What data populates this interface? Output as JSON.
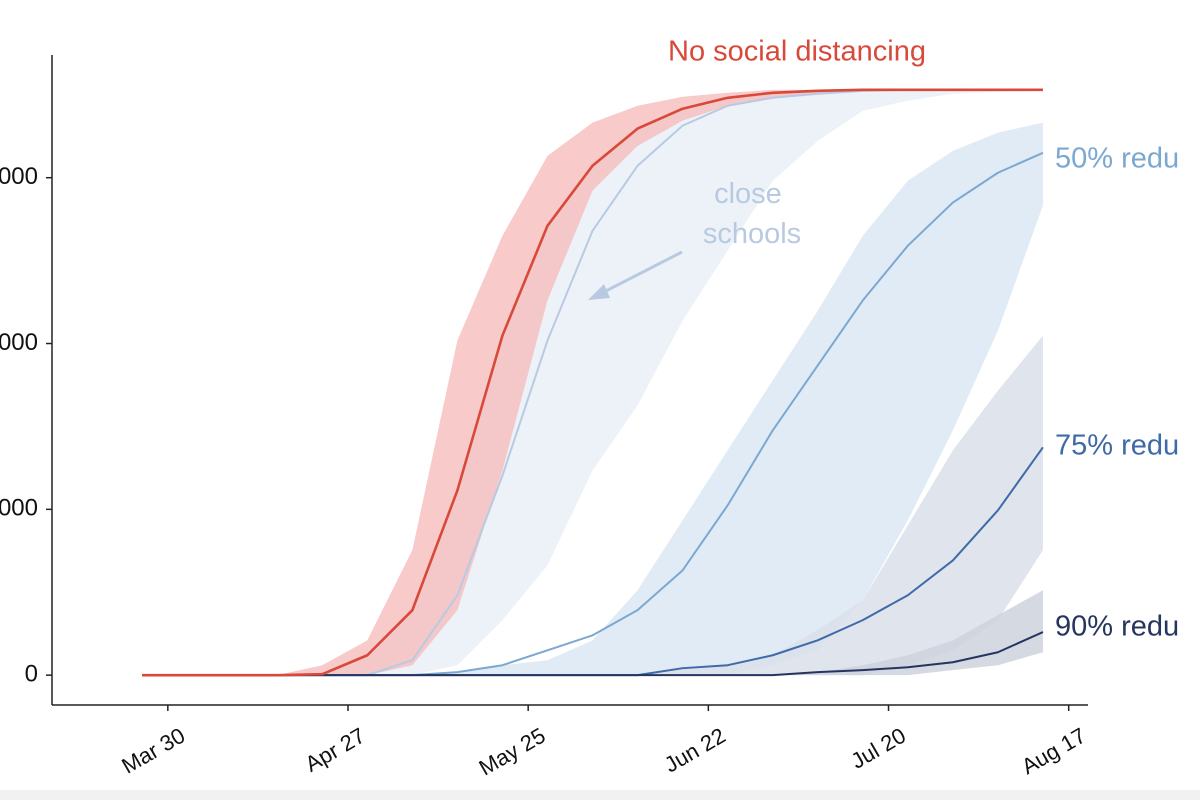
{
  "chart_data": {
    "type": "line",
    "x": [
      "Mar 26",
      "Apr 2",
      "Apr 9",
      "Apr 16",
      "Apr 23",
      "Apr 30",
      "May 7",
      "May 14",
      "May 21",
      "May 28",
      "Jun 4",
      "Jun 11",
      "Jun 18",
      "Jun 25",
      "Jul 2",
      "Jul 9",
      "Jul 16",
      "Jul 23",
      "Jul 30",
      "Aug 6",
      "Aug 13"
    ],
    "xlim": [
      "Mar 12",
      "Aug 20"
    ],
    "xticks": [
      "Mar 30",
      "Apr 27",
      "May 25",
      "Jun 22",
      "Jul 20",
      "Aug 17"
    ],
    "ylim": [
      -900,
      18700
    ],
    "yticks": [
      0,
      {
        "value": 5000,
        "label": "000"
      },
      {
        "value": 10000,
        "label": "000"
      },
      {
        "value": 15000,
        "label": "000"
      }
    ],
    "series": [
      {
        "name": "close schools",
        "color": "#b8cae2",
        "band_color": "#eaf0f8",
        "values": [
          0,
          0,
          0,
          0,
          0,
          0,
          450,
          2410,
          6020,
          10090,
          13400,
          15360,
          16570,
          17170,
          17410,
          17530,
          17620,
          17650,
          17650,
          17650,
          17650
        ],
        "lower": [
          0,
          0,
          0,
          0,
          0,
          0,
          0,
          300,
          1660,
          3310,
          6170,
          8130,
          10690,
          12800,
          14910,
          16110,
          17020,
          17320,
          17530,
          17590,
          17620
        ],
        "upper": [
          0,
          0,
          0,
          0,
          30,
          600,
          1960,
          5570,
          10240,
          13550,
          15360,
          16480,
          17080,
          17410,
          17560,
          17620,
          17650,
          17650,
          17650,
          17650,
          17650
        ]
      },
      {
        "name": "50% redu",
        "color": "#7ba8d1",
        "band_color": "#dce7f3",
        "values": [
          0,
          0,
          0,
          0,
          0,
          0,
          0,
          90,
          300,
          750,
          1200,
          1960,
          3160,
          5120,
          7380,
          9340,
          11300,
          12950,
          14250,
          15150,
          15750
        ],
        "lower": [
          0,
          0,
          0,
          0,
          0,
          0,
          0,
          0,
          0,
          0,
          0,
          0,
          0,
          0,
          300,
          750,
          2260,
          4670,
          7380,
          10390,
          14160
        ],
        "upper": [
          0,
          0,
          0,
          0,
          0,
          0,
          0,
          90,
          300,
          450,
          1050,
          2560,
          4670,
          6780,
          8890,
          10990,
          13250,
          14910,
          15810,
          16360,
          16660
        ]
      },
      {
        "name": "75% redu",
        "color": "#3f6aa8",
        "band_color": "#dbe1ea",
        "values": [
          0,
          0,
          0,
          0,
          0,
          0,
          0,
          0,
          0,
          0,
          0,
          0,
          210,
          300,
          600,
          1050,
          1660,
          2410,
          3460,
          4970,
          6870
        ],
        "lower": [
          0,
          0,
          0,
          0,
          0,
          0,
          0,
          0,
          0,
          0,
          0,
          0,
          0,
          0,
          0,
          0,
          0,
          300,
          750,
          1660,
          3770
        ],
        "upper": [
          0,
          0,
          0,
          0,
          0,
          0,
          0,
          0,
          0,
          0,
          0,
          0,
          210,
          300,
          600,
          1360,
          2260,
          4520,
          6780,
          8580,
          10240
        ]
      },
      {
        "name": "90% redu",
        "color": "#26355f",
        "band_color": "#cdd2dd",
        "values": [
          0,
          0,
          0,
          0,
          0,
          0,
          0,
          0,
          0,
          0,
          0,
          0,
          0,
          0,
          0,
          90,
          150,
          240,
          390,
          690,
          1300
        ],
        "lower": [
          0,
          0,
          0,
          0,
          0,
          0,
          0,
          0,
          0,
          0,
          0,
          0,
          0,
          0,
          0,
          0,
          0,
          0,
          150,
          300,
          690
        ],
        "upper": [
          0,
          0,
          0,
          0,
          0,
          0,
          0,
          0,
          0,
          0,
          0,
          0,
          0,
          0,
          0,
          90,
          300,
          600,
          1050,
          1810,
          2560
        ]
      },
      {
        "name": "No social distancing",
        "color": "#d9493a",
        "band_color": "#f6b8b8",
        "values": [
          0,
          0,
          0,
          0,
          30,
          600,
          1960,
          5570,
          10240,
          13550,
          15360,
          16480,
          17080,
          17410,
          17560,
          17620,
          17650,
          17650,
          17650,
          17650,
          17650
        ],
        "lower": [
          0,
          0,
          0,
          0,
          0,
          0,
          300,
          1960,
          6170,
          11300,
          14610,
          15960,
          16720,
          17170,
          17410,
          17530,
          17620,
          17650,
          17650,
          17650,
          17650
        ],
        "upper": [
          0,
          0,
          0,
          0,
          300,
          1050,
          3770,
          10090,
          13250,
          15660,
          16660,
          17170,
          17440,
          17560,
          17650,
          17650,
          17650,
          17650,
          17650,
          17650,
          17650
        ]
      }
    ]
  }
}
